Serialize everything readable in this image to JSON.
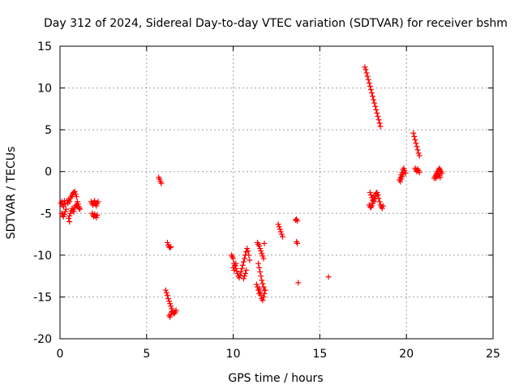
{
  "chart_data": {
    "type": "scatter",
    "title": "Day 312 of 2024, Sidereal Day-to-day VTEC variation (SDTVAR) for receiver bshm",
    "xlabel": "GPS time / hours",
    "ylabel": "SDTVAR / TECUs",
    "xlim": [
      0,
      25
    ],
    "ylim": [
      -20,
      15
    ],
    "xticks": [
      0,
      5,
      10,
      15,
      20,
      25
    ],
    "yticks": [
      15,
      10,
      5,
      0,
      -5,
      -10,
      -15,
      -20
    ],
    "grid": true,
    "marker": "+",
    "color": "#ff0000",
    "series": [
      {
        "name": "SDTVAR",
        "x": [
          0.05,
          0.1,
          0.15,
          0.2,
          0.25,
          0.3,
          0.1,
          0.15,
          0.2,
          0.25,
          0.3,
          0.35,
          0.4,
          0.45,
          0.5,
          0.55,
          0.6,
          0.65,
          0.7,
          0.75,
          0.8,
          0.85,
          0.9,
          0.95,
          1.0,
          1.05,
          1.1,
          1.15,
          0.5,
          0.55,
          0.6,
          0.65,
          0.7,
          0.75,
          0.8,
          0.85,
          0.9,
          0.95,
          1.0,
          1.05,
          1.1,
          0.55,
          1.8,
          1.85,
          1.9,
          1.95,
          2.0,
          2.05,
          2.1,
          2.15,
          2.2,
          1.85,
          1.9,
          1.95,
          2.0,
          2.05,
          2.1,
          2.15,
          5.7,
          5.75,
          5.8,
          5.85,
          6.2,
          6.25,
          6.3,
          6.35,
          6.4,
          6.1,
          6.15,
          6.2,
          6.25,
          6.3,
          6.35,
          6.4,
          6.45,
          6.5,
          6.55,
          6.6,
          6.65,
          6.7,
          6.3,
          6.35,
          6.4,
          6.45,
          9.9,
          9.95,
          10.0,
          10.05,
          10.1,
          10.15,
          10.2,
          10.25,
          10.3,
          10.35,
          10.4,
          10.45,
          10.5,
          10.55,
          10.6,
          10.65,
          10.7,
          10.75,
          10.8,
          10.85,
          10.9,
          10.95,
          10.0,
          10.05,
          10.1,
          10.15,
          10.6,
          10.65,
          10.7,
          10.75,
          11.4,
          11.45,
          11.5,
          11.55,
          11.6,
          11.65,
          11.7,
          11.75,
          11.8,
          11.45,
          11.5,
          11.55,
          11.6,
          11.65,
          11.7,
          11.75,
          11.8,
          11.5,
          11.55,
          11.6,
          11.65,
          11.7,
          11.75,
          11.8,
          11.85,
          11.35,
          11.4,
          11.45,
          11.5,
          12.6,
          12.65,
          12.7,
          12.75,
          12.8,
          12.85,
          13.6,
          13.65,
          13.7,
          13.65,
          13.7,
          13.75,
          15.5,
          17.6,
          17.65,
          17.7,
          17.75,
          17.8,
          17.85,
          17.9,
          17.95,
          18.0,
          18.05,
          18.1,
          18.15,
          18.2,
          18.25,
          18.3,
          18.35,
          18.4,
          18.45,
          18.5,
          17.9,
          17.95,
          18.0,
          18.05,
          18.1,
          18.15,
          18.2,
          18.25,
          18.3,
          18.35,
          18.4,
          18.45,
          18.5,
          18.55,
          18.6,
          18.65,
          17.85,
          17.9,
          17.95,
          18.0,
          18.05,
          18.1,
          18.15,
          18.2,
          18.25,
          19.6,
          19.65,
          19.7,
          19.75,
          19.8,
          19.85,
          19.9,
          19.95,
          19.65,
          19.7,
          19.75,
          19.8,
          20.4,
          20.45,
          20.5,
          20.55,
          20.6,
          20.65,
          20.7,
          20.75,
          20.5,
          20.55,
          20.6,
          20.65,
          20.7,
          20.75,
          21.6,
          21.65,
          21.7,
          21.75,
          21.8,
          21.85,
          21.9,
          21.95,
          22.0,
          22.05,
          21.7,
          21.75,
          21.8,
          21.85,
          21.9,
          21.95
        ],
        "y": [
          -3.8,
          -3.6,
          -4.0,
          -4.2,
          -3.5,
          -3.9,
          -5.0,
          -5.2,
          -5.4,
          -5.1,
          -4.8,
          -4.5,
          -3.5,
          -3.8,
          -3.4,
          -3.6,
          -3.2,
          -3.0,
          -2.8,
          -2.6,
          -2.5,
          -2.4,
          -2.7,
          -3.0,
          -3.6,
          -3.9,
          -4.2,
          -4.5,
          -5.6,
          -5.3,
          -5.0,
          -4.7,
          -4.4,
          -4.6,
          -4.8,
          -4.3,
          -4.1,
          -4.0,
          -3.9,
          -4.2,
          -4.4,
          -6.0,
          -3.6,
          -3.8,
          -4.0,
          -3.7,
          -3.5,
          -3.9,
          -4.1,
          -3.8,
          -3.6,
          -5.0,
          -5.2,
          -5.4,
          -5.1,
          -5.3,
          -5.5,
          -5.2,
          -0.7,
          -0.9,
          -1.2,
          -1.4,
          -8.5,
          -8.8,
          -9.0,
          -9.1,
          -9.0,
          -14.2,
          -14.5,
          -14.8,
          -15.2,
          -15.5,
          -15.8,
          -16.1,
          -16.4,
          -16.7,
          -16.9,
          -17.0,
          -16.8,
          -16.6,
          -17.2,
          -17.4,
          -17.1,
          -16.8,
          -10.0,
          -10.2,
          -10.4,
          -11.0,
          -11.3,
          -11.6,
          -11.9,
          -12.2,
          -12.5,
          -12.7,
          -12.4,
          -12.0,
          -11.6,
          -11.2,
          -10.8,
          -10.4,
          -10.0,
          -9.6,
          -9.2,
          -9.5,
          -10.0,
          -10.6,
          -11.5,
          -11.8,
          -11.2,
          -11.0,
          -12.8,
          -12.5,
          -12.2,
          -11.8,
          -8.5,
          -8.7,
          -8.9,
          -9.2,
          -9.5,
          -9.8,
          -10.1,
          -10.4,
          -8.6,
          -11.0,
          -11.5,
          -12.0,
          -12.5,
          -13.0,
          -13.4,
          -13.8,
          -14.2,
          -14.0,
          -14.4,
          -14.8,
          -15.2,
          -15.4,
          -15.0,
          -14.6,
          -14.2,
          -13.5,
          -13.8,
          -14.2,
          -14.6,
          -6.3,
          -6.6,
          -6.9,
          -7.2,
          -7.5,
          -7.8,
          -5.8,
          -5.7,
          -5.9,
          -8.4,
          -8.6,
          -13.3,
          -12.6,
          12.5,
          12.2,
          11.8,
          11.4,
          11.0,
          10.6,
          10.2,
          9.8,
          9.4,
          9.0,
          8.6,
          8.2,
          7.8,
          7.4,
          7.0,
          6.6,
          6.2,
          5.8,
          5.4,
          -2.5,
          -2.8,
          -3.1,
          -3.4,
          -3.6,
          -3.3,
          -3.0,
          -2.7,
          -2.5,
          -2.8,
          -3.2,
          -3.6,
          -4.0,
          -4.2,
          -4.4,
          -4.1,
          -4.0,
          -4.2,
          -4.3,
          -4.1,
          -3.8,
          -3.5,
          -3.2,
          -2.9,
          -2.6,
          -1.0,
          -0.7,
          -0.4,
          -0.1,
          0.2,
          0.4,
          0.1,
          -0.2,
          -1.2,
          -0.9,
          -0.6,
          -0.3,
          4.6,
          4.2,
          3.8,
          3.4,
          3.0,
          2.6,
          2.2,
          1.9,
          0.4,
          0.2,
          0.0,
          0.3,
          0.1,
          -0.1,
          -0.8,
          -0.6,
          -0.4,
          -0.2,
          0.0,
          0.2,
          0.4,
          0.2,
          0.0,
          -0.2,
          -0.8,
          -0.6,
          -0.4,
          -0.3,
          -0.5,
          -0.7
        ]
      }
    ]
  }
}
